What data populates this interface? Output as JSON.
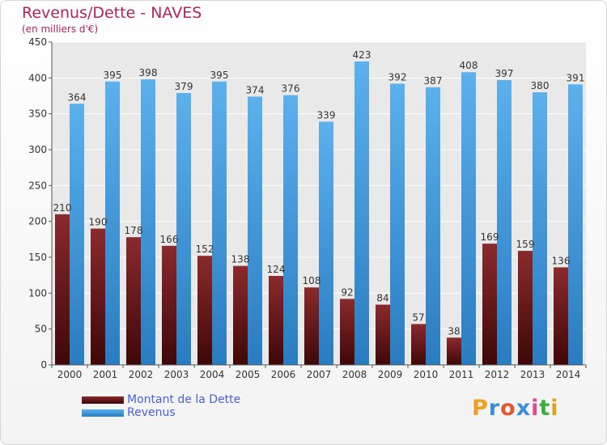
{
  "header": {
    "title": "Revenus/Dette - NAVES",
    "subtitle": "(en milliers d'€)"
  },
  "legend": {
    "dette_label": "Montant de la Dette",
    "revenus_label": "Revenus"
  },
  "brand": {
    "text": "Proxiti",
    "letters": [
      "P",
      "r",
      "o",
      "x",
      "i",
      "t",
      "i"
    ],
    "colors": [
      "#f0a020",
      "#3a8fd8",
      "#e05a30",
      "#3a8fd8",
      "#e04a90",
      "#38b040",
      "#e0a020"
    ]
  },
  "colors": {
    "dette": "#7a1f22",
    "dette_dark": "#4a0a0c",
    "revenus": "#4da3e2",
    "revenus_dark": "#2b7fc4",
    "axis_text": "#333333",
    "grid": "#ffffff",
    "plot_bg": "#e9e9e9"
  },
  "chart_data": {
    "type": "bar",
    "title": "Revenus/Dette - NAVES",
    "subtitle": "(en milliers d'€)",
    "categories": [
      "2000",
      "2001",
      "2002",
      "2003",
      "2004",
      "2005",
      "2006",
      "2007",
      "2008",
      "2009",
      "2010",
      "2011",
      "2012",
      "2013",
      "2014"
    ],
    "series": [
      {
        "name": "Montant de la Dette",
        "values": [
          210,
          190,
          178,
          166,
          152,
          138,
          124,
          108,
          92,
          84,
          57,
          38,
          169,
          159,
          136
        ]
      },
      {
        "name": "Revenus",
        "values": [
          364,
          395,
          398,
          379,
          395,
          374,
          376,
          339,
          423,
          392,
          387,
          408,
          397,
          380,
          391
        ]
      }
    ],
    "ylim": [
      0,
      450
    ],
    "yticks": [
      0,
      50,
      100,
      150,
      200,
      250,
      300,
      350,
      400,
      450
    ],
    "grid": true,
    "legend_position": "bottom-left"
  }
}
